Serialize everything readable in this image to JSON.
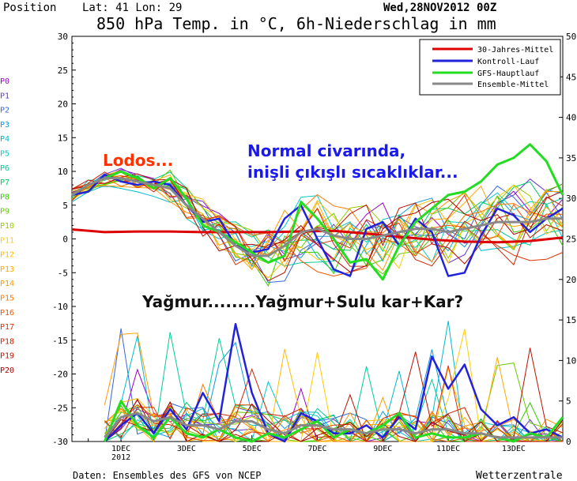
{
  "header": {
    "position_label": "Position",
    "lat_lon": "Lat: 41 Lon: 29",
    "run_date": "Wed,28NOV2012 00Z",
    "title": "850 hPa Temp. in °C, 6h-Niederschlag in mm"
  },
  "footer": {
    "source": "Daten: Ensembles des GFS von NCEP",
    "brand": "Wetterzentrale"
  },
  "member_labels": [
    "P0",
    "P1",
    "P2",
    "P3",
    "P4",
    "P5",
    "P6",
    "P7",
    "P8",
    "P9",
    "P10",
    "P11",
    "P12",
    "P13",
    "P14",
    "P15",
    "P16",
    "P17",
    "P18",
    "P19",
    "P20"
  ],
  "member_colors": [
    "#9900cc",
    "#6633cc",
    "#3366dd",
    "#1199dd",
    "#00bbcc",
    "#00cccc",
    "#00cc99",
    "#00cc66",
    "#33cc00",
    "#66cc00",
    "#99cc00",
    "#ffcc00",
    "#ffbb00",
    "#ffaa00",
    "#ff9900",
    "#ff7700",
    "#ee5500",
    "#dd3300",
    "#cc2200",
    "#bb1100",
    "#aa0000"
  ],
  "annotations": {
    "lodos": "Lodos...",
    "normal_line1": "Normal civarında,",
    "normal_line2": "inişli çıkışlı sıcaklıklar...",
    "yagmur": "Yağmur........Yağmur+Sulu kar+Kar?"
  },
  "colors": {
    "lodos": "#ff3300",
    "normal": "#1a1aee",
    "yagmur": "#111111",
    "mittel30": "#dd0000",
    "kontroll": "#2222dd",
    "gfs": "#22dd22",
    "ensemble": "#888888"
  },
  "chart_data": {
    "type": "line",
    "title": "850 hPa Temp. in °C, 6h-Niederschlag in mm",
    "left_axis": {
      "unit": "°C",
      "ylim": [
        -30,
        30
      ],
      "ticks": [
        30,
        25,
        20,
        15,
        10,
        5,
        0,
        -5,
        -10,
        -15,
        -20,
        -25,
        -30
      ]
    },
    "right_axis": {
      "unit": "mm",
      "ylim": [
        0,
        50
      ],
      "ticks": [
        50,
        45,
        40,
        35,
        30,
        25,
        20,
        15,
        10,
        5,
        0
      ]
    },
    "x_ticks": [
      {
        "label": "1DEC",
        "day": 1,
        "sub": "2012"
      },
      {
        "label": "3DEC",
        "day": 3
      },
      {
        "label": "5DEC",
        "day": 5
      },
      {
        "label": "7DEC",
        "day": 7
      },
      {
        "label": "9DEC",
        "day": 9
      },
      {
        "label": "11DEC",
        "day": 11
      },
      {
        "label": "13DEC",
        "day": 13
      }
    ],
    "x_range_days": [
      -0.5,
      14.5
    ],
    "legend": [
      "30-Jahres-Mittel",
      "Kontroll-Lauf",
      "GFS-Hauptlauf",
      "Ensemble-Mittel"
    ],
    "legend_position": "top-right",
    "temperature_series": [
      {
        "name": "30-Jahres-Mittel",
        "role": "mittel30",
        "x": [
          -0.5,
          0.5,
          1.5,
          2.5,
          3.5,
          4.5,
          5.5,
          6.5,
          7.5,
          8.5,
          9.5,
          10.5,
          11.5,
          12.5,
          13.5,
          14.5
        ],
        "y": [
          1.4,
          1.0,
          1.1,
          1.1,
          1.0,
          1.0,
          1.0,
          1.1,
          1.2,
          0.8,
          0.3,
          -0.1,
          -0.4,
          -0.5,
          -0.3,
          0.2
        ]
      },
      {
        "name": "Kontroll-Lauf",
        "role": "kontroll",
        "x": [
          -0.5,
          0.0,
          0.5,
          1.0,
          1.5,
          2.0,
          2.5,
          3.0,
          3.5,
          4.0,
          4.5,
          5.0,
          5.5,
          6.0,
          6.5,
          7.0,
          7.5,
          8.0,
          8.5,
          9.0,
          9.5,
          10.0,
          10.5,
          11.0,
          11.5,
          12.0,
          12.5,
          13.0,
          13.5,
          14.0,
          14.5
        ],
        "y": [
          6.5,
          7.0,
          9.5,
          8.5,
          8.0,
          8.5,
          8.0,
          5.0,
          2.5,
          3.0,
          -1.0,
          -2.0,
          -1.5,
          3.0,
          5.0,
          0.0,
          -4.5,
          -5.5,
          1.5,
          2.5,
          -1.0,
          3.0,
          1.0,
          -5.5,
          -5.0,
          0.5,
          4.5,
          3.5,
          1.0,
          3.0,
          4.5
        ]
      },
      {
        "name": "GFS-Hauptlauf",
        "role": "gfs",
        "x": [
          -0.5,
          0.0,
          0.5,
          1.0,
          1.5,
          2.0,
          2.5,
          3.0,
          3.5,
          4.0,
          4.5,
          5.0,
          5.5,
          6.0,
          6.5,
          7.0,
          7.5,
          8.0,
          8.5,
          9.0,
          9.5,
          10.0,
          10.5,
          11.0,
          11.5,
          12.0,
          12.5,
          13.0,
          13.5,
          14.0,
          14.5
        ],
        "y": [
          6.5,
          8.0,
          9.0,
          10.0,
          9.0,
          7.5,
          9.0,
          6.0,
          2.0,
          1.0,
          -0.5,
          -2.0,
          -3.5,
          -2.5,
          5.5,
          3.0,
          0.0,
          -3.5,
          -3.0,
          -6.0,
          -1.0,
          2.5,
          4.5,
          6.5,
          7.0,
          8.5,
          11.0,
          12.0,
          14.0,
          11.5,
          6.5
        ]
      },
      {
        "name": "Ensemble-Mittel",
        "role": "ensemble",
        "x": [
          -0.5,
          0.0,
          0.5,
          1.0,
          1.5,
          2.0,
          2.5,
          3.0,
          3.5,
          4.0,
          4.5,
          5.0,
          5.5,
          6.0,
          6.5,
          7.0,
          7.5,
          8.0,
          8.5,
          9.0,
          9.5,
          10.0,
          10.5,
          11.0,
          11.5,
          12.0,
          12.5,
          13.0,
          13.5,
          14.0,
          14.5
        ],
        "y": [
          6.5,
          8.0,
          9.0,
          9.0,
          8.5,
          8.0,
          7.5,
          5.0,
          3.0,
          1.0,
          -1.0,
          -2.5,
          -2.5,
          -1.0,
          1.0,
          1.5,
          0.5,
          0.0,
          0.0,
          0.5,
          1.0,
          1.5,
          1.5,
          1.0,
          1.5,
          2.0,
          2.5,
          2.5,
          2.5,
          3.0,
          3.0
        ]
      }
    ],
    "precipitation_series": [
      {
        "name": "Kontroll-Lauf",
        "role": "kontroll",
        "x": [
          0.5,
          1.0,
          1.5,
          2.0,
          2.5,
          3.0,
          3.5,
          4.0,
          4.5,
          5.0,
          5.5,
          6.0,
          6.5,
          7.0,
          7.5,
          8.0,
          8.5,
          9.0,
          9.5,
          10.0,
          10.5,
          11.0,
          11.5,
          12.0,
          12.5,
          13.0,
          13.5,
          14.0,
          14.5
        ],
        "y": [
          0.0,
          2.0,
          3.5,
          1.0,
          4.0,
          1.5,
          6.0,
          2.5,
          14.5,
          6.0,
          1.0,
          0.0,
          3.5,
          2.5,
          1.0,
          1.0,
          2.0,
          0.5,
          3.0,
          1.5,
          10.5,
          6.5,
          9.5,
          4.0,
          2.0,
          3.0,
          1.0,
          1.5,
          0.5
        ]
      },
      {
        "name": "GFS-Hauptlauf",
        "role": "gfs",
        "x": [
          0.5,
          1.0,
          1.5,
          2.0,
          2.5,
          3.0,
          3.5,
          4.0,
          4.5,
          5.0,
          5.5,
          6.0,
          6.5,
          7.0,
          7.5,
          8.0,
          8.5,
          9.0,
          9.5,
          10.0,
          10.5,
          11.0,
          11.5,
          12.0,
          12.5,
          13.0,
          13.5,
          14.0,
          14.5
        ],
        "y": [
          0.0,
          5.0,
          2.0,
          0.5,
          3.0,
          1.0,
          0.5,
          1.5,
          0.5,
          0.0,
          1.0,
          0.5,
          1.5,
          2.5,
          0.5,
          1.5,
          1.0,
          2.0,
          3.5,
          0.5,
          1.0,
          0.5,
          0.5,
          1.0,
          0.5,
          0.0,
          1.0,
          0.5,
          3.0
        ]
      },
      {
        "name": "Ensemble-Mittel",
        "role": "ensemble",
        "x": [
          0.5,
          1.0,
          1.5,
          2.0,
          2.5,
          3.0,
          3.5,
          4.0,
          4.5,
          5.0,
          5.5,
          6.0,
          6.5,
          7.0,
          7.5,
          8.0,
          8.5,
          9.0,
          9.5,
          10.0,
          10.5,
          11.0,
          11.5,
          12.0,
          12.5,
          13.0,
          13.5,
          14.0,
          14.5
        ],
        "y": [
          0.5,
          3.0,
          3.5,
          2.5,
          3.0,
          2.0,
          2.0,
          1.5,
          2.5,
          2.5,
          1.5,
          1.0,
          2.0,
          2.0,
          1.5,
          1.5,
          1.0,
          1.5,
          1.5,
          1.0,
          1.5,
          1.5,
          1.0,
          1.0,
          0.5,
          0.5,
          0.5,
          0.5,
          0.5
        ]
      }
    ]
  }
}
